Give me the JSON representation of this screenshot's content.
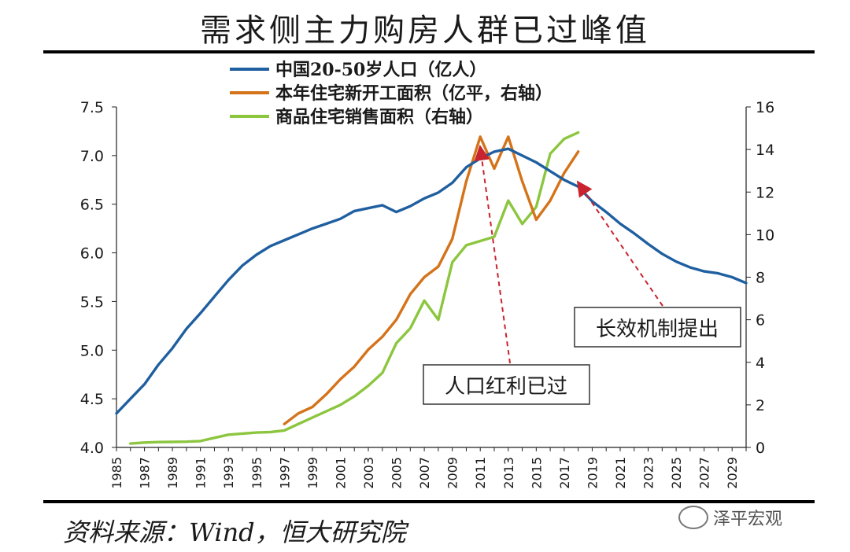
{
  "page": {
    "title": "需求侧主力购房人群已过峰值",
    "source": "资料来源：Wind，恒大研究院",
    "watermark": "泽平宏观"
  },
  "colors": {
    "population": "#1f5fa0",
    "new_start": "#d4731a",
    "sales": "#8cc63f",
    "arrow": "#c8242f",
    "text": "#1a1a1a"
  },
  "chart_data": {
    "type": "line",
    "title": "需求侧主力购房人群已过峰值",
    "x_categories": [
      1985,
      1986,
      1987,
      1988,
      1989,
      1990,
      1991,
      1992,
      1993,
      1994,
      1995,
      1996,
      1997,
      1998,
      1999,
      2000,
      2001,
      2002,
      2003,
      2004,
      2005,
      2006,
      2007,
      2008,
      2009,
      2010,
      2011,
      2012,
      2013,
      2014,
      2015,
      2016,
      2017,
      2018,
      2019,
      2020,
      2021,
      2022,
      2023,
      2024,
      2025,
      2026,
      2027,
      2028,
      2029,
      2030
    ],
    "x_tick_labels": [
      "1985",
      "1987",
      "1989",
      "1991",
      "1993",
      "1995",
      "1997",
      "1999",
      "2001",
      "2003",
      "2005",
      "2007",
      "2009",
      "2011",
      "2013",
      "2015",
      "2017",
      "2019",
      "2021",
      "2023",
      "2025",
      "2027",
      "2029"
    ],
    "y_left": {
      "min": 4.0,
      "max": 7.5,
      "ticks": [
        "4.0",
        "4.5",
        "5.0",
        "5.5",
        "6.0",
        "6.5",
        "7.0",
        "7.5"
      ]
    },
    "y_right": {
      "min": 0,
      "max": 16,
      "ticks": [
        "0",
        "2",
        "4",
        "6",
        "8",
        "10",
        "12",
        "14",
        "16"
      ]
    },
    "legend": [
      "中国20-50岁人口（亿人）",
      "本年住宅新开工面积（亿平，右轴）",
      "商品住宅销售面积（右轴）"
    ],
    "series": [
      {
        "name": "中国20-50岁人口（亿人）",
        "axis": "left",
        "x": [
          1985,
          1986,
          1987,
          1988,
          1989,
          1990,
          1991,
          1992,
          1993,
          1994,
          1995,
          1996,
          1997,
          1998,
          1999,
          2000,
          2001,
          2002,
          2003,
          2004,
          2005,
          2006,
          2007,
          2008,
          2009,
          2010,
          2011,
          2012,
          2013,
          2014,
          2015,
          2016,
          2017,
          2018,
          2019,
          2020,
          2021,
          2022,
          2023,
          2024,
          2025,
          2026,
          2027,
          2028,
          2029,
          2030
        ],
        "values": [
          4.35,
          4.5,
          4.65,
          4.85,
          5.02,
          5.22,
          5.38,
          5.55,
          5.72,
          5.87,
          5.98,
          6.07,
          6.13,
          6.19,
          6.25,
          6.3,
          6.35,
          6.43,
          6.46,
          6.49,
          6.42,
          6.48,
          6.56,
          6.62,
          6.72,
          6.88,
          6.97,
          7.04,
          7.07,
          7.0,
          6.93,
          6.84,
          6.75,
          6.68,
          6.53,
          6.42,
          6.3,
          6.2,
          6.09,
          5.99,
          5.91,
          5.85,
          5.81,
          5.79,
          5.75,
          5.69
        ]
      },
      {
        "name": "本年住宅新开工面积（亿平，右轴）",
        "axis": "right",
        "x": [
          1997,
          1998,
          1999,
          2000,
          2001,
          2002,
          2003,
          2004,
          2005,
          2006,
          2007,
          2008,
          2009,
          2010,
          2011,
          2012,
          2013,
          2014,
          2015,
          2016,
          2017,
          2018
        ],
        "values": [
          1.1,
          1.6,
          1.9,
          2.5,
          3.2,
          3.8,
          4.6,
          5.2,
          6.0,
          7.2,
          8.0,
          8.5,
          9.8,
          12.5,
          14.6,
          13.1,
          14.6,
          12.5,
          10.7,
          11.6,
          12.9,
          13.9
        ]
      },
      {
        "name": "商品住宅销售面积（右轴）",
        "axis": "right",
        "x": [
          1986,
          1987,
          1988,
          1989,
          1990,
          1991,
          1992,
          1993,
          1994,
          1995,
          1996,
          1997,
          1998,
          1999,
          2000,
          2001,
          2002,
          2003,
          2004,
          2005,
          2006,
          2007,
          2008,
          2009,
          2010,
          2011,
          2012,
          2013,
          2014,
          2015,
          2016,
          2017,
          2018
        ],
        "values": [
          0.18,
          0.23,
          0.25,
          0.26,
          0.27,
          0.3,
          0.45,
          0.6,
          0.65,
          0.7,
          0.72,
          0.8,
          1.1,
          1.4,
          1.7,
          2.0,
          2.4,
          2.9,
          3.5,
          4.9,
          5.6,
          6.9,
          6.0,
          8.7,
          9.5,
          9.7,
          9.9,
          11.6,
          10.5,
          11.3,
          13.8,
          14.5,
          14.8
        ]
      }
    ],
    "annotations": [
      {
        "text": "人口红利已过",
        "target_x": 2011,
        "target_y_left": 7.08
      },
      {
        "text": "长效机制提出",
        "target_x": 2017.8,
        "target_y_left": 6.75
      }
    ]
  }
}
